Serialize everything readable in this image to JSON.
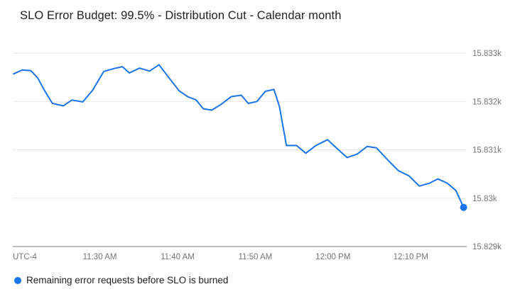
{
  "chart_data": {
    "type": "line",
    "title": "SLO Error Budget: 99.5% - Distribution Cut - Calendar month",
    "timezone_label": "UTC-4",
    "grid": "horizontal",
    "legend_position": "bottom",
    "x_axis": {
      "unit": "minutes_after_11am",
      "domain_minutes": [
        18.8,
        77.2
      ],
      "ticks": [
        {
          "minute": 30,
          "label": "11:30 AM"
        },
        {
          "minute": 40,
          "label": "11:40 AM"
        },
        {
          "minute": 50,
          "label": "11:50 AM"
        },
        {
          "minute": 60,
          "label": "12:00 PM"
        },
        {
          "minute": 70,
          "label": "12:10 PM"
        }
      ]
    },
    "y_axis": {
      "ylim": [
        15829,
        15833
      ],
      "ticks": [
        {
          "value": 15829,
          "label": "15.829k"
        },
        {
          "value": 15830,
          "label": "15.83k"
        },
        {
          "value": 15831,
          "label": "15.831k"
        },
        {
          "value": 15832,
          "label": "15.832k"
        },
        {
          "value": 15833,
          "label": "15.833k"
        }
      ]
    },
    "series": [
      {
        "name": "Remaining error requests before SLO is burned",
        "color": "#1a73e8",
        "points": [
          [
            18.9,
            15832.57
          ],
          [
            20.0,
            15832.65
          ],
          [
            21.1,
            15832.64
          ],
          [
            22.0,
            15832.49
          ],
          [
            22.9,
            15832.22
          ],
          [
            23.9,
            15831.96
          ],
          [
            25.3,
            15831.91
          ],
          [
            26.4,
            15832.03
          ],
          [
            27.8,
            15831.99
          ],
          [
            29.1,
            15832.24
          ],
          [
            30.5,
            15832.62
          ],
          [
            31.8,
            15832.68
          ],
          [
            32.9,
            15832.72
          ],
          [
            33.8,
            15832.59
          ],
          [
            35.1,
            15832.69
          ],
          [
            36.4,
            15832.63
          ],
          [
            37.6,
            15832.76
          ],
          [
            38.9,
            15832.49
          ],
          [
            40.2,
            15832.22
          ],
          [
            41.3,
            15832.1
          ],
          [
            42.4,
            15832.03
          ],
          [
            43.3,
            15831.85
          ],
          [
            44.4,
            15831.82
          ],
          [
            45.6,
            15831.94
          ],
          [
            46.9,
            15832.1
          ],
          [
            48.2,
            15832.13
          ],
          [
            49.1,
            15831.96
          ],
          [
            50.2,
            15832.0
          ],
          [
            51.3,
            15832.21
          ],
          [
            52.4,
            15832.25
          ],
          [
            53.1,
            15831.9
          ],
          [
            54.0,
            15831.09
          ],
          [
            55.3,
            15831.09
          ],
          [
            56.5,
            15830.93
          ],
          [
            57.8,
            15831.09
          ],
          [
            59.3,
            15831.21
          ],
          [
            60.5,
            15831.03
          ],
          [
            61.8,
            15830.84
          ],
          [
            63.1,
            15830.91
          ],
          [
            64.4,
            15831.07
          ],
          [
            65.6,
            15831.04
          ],
          [
            67.1,
            15830.78
          ],
          [
            68.4,
            15830.57
          ],
          [
            69.8,
            15830.46
          ],
          [
            71.1,
            15830.25
          ],
          [
            72.4,
            15830.31
          ],
          [
            73.5,
            15830.4
          ],
          [
            74.7,
            15830.31
          ],
          [
            75.8,
            15830.16
          ],
          [
            76.8,
            15829.81
          ]
        ]
      }
    ],
    "end_marker": true
  },
  "legend": {
    "label": "Remaining error requests before SLO is burned"
  },
  "colors": {
    "line": "#1a73e8",
    "grid": "#e8e8e8",
    "axis": "#757575",
    "tick_text": "#757575",
    "title_text": "#202124",
    "legend_text": "#202124",
    "background": "#ffffff"
  }
}
